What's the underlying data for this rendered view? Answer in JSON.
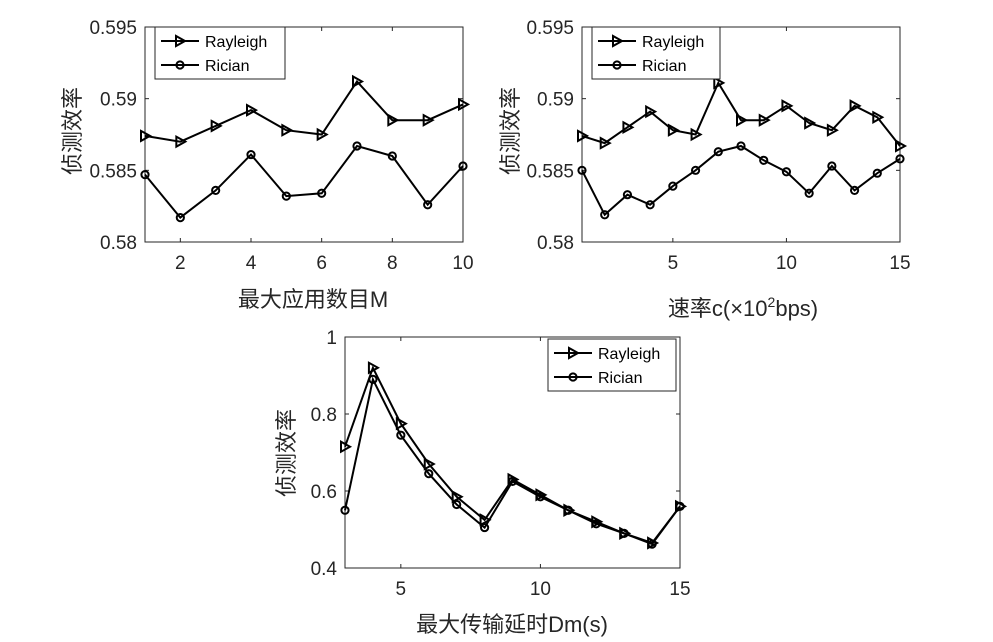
{
  "chart_data": [
    {
      "type": "line",
      "xlabel": "最大应用数目M",
      "ylabel": "侦测效率",
      "xlim": [
        1,
        10
      ],
      "ylim": [
        0.58,
        0.595
      ],
      "xticks": [
        "2",
        "4",
        "6",
        "8",
        "10"
      ],
      "yticks": [
        "0.58",
        "0.585",
        "0.59",
        "0.595"
      ],
      "legend_position": "top-left",
      "series": [
        {
          "name": "Rayleigh",
          "marker": "triangle-right",
          "x": [
            1,
            2,
            3,
            4,
            5,
            6,
            7,
            8,
            9,
            10
          ],
          "values": [
            0.5874,
            0.587,
            0.5881,
            0.5892,
            0.5878,
            0.5875,
            0.5912,
            0.5885,
            0.5885,
            0.5896
          ]
        },
        {
          "name": "Rician",
          "marker": "circle",
          "x": [
            1,
            2,
            3,
            4,
            5,
            6,
            7,
            8,
            9,
            10
          ],
          "values": [
            0.5847,
            0.5817,
            0.5836,
            0.5861,
            0.5832,
            0.5834,
            0.5867,
            0.586,
            0.5826,
            0.5853
          ]
        }
      ]
    },
    {
      "type": "line",
      "xlabel_prefix": "速率c(×10",
      "xlabel_sup": "2",
      "xlabel_suffix": "bps)",
      "ylabel": "侦测效率",
      "xlim": [
        1,
        15
      ],
      "ylim": [
        0.58,
        0.595
      ],
      "xticks": [
        "5",
        "10",
        "15"
      ],
      "yticks": [
        "0.58",
        "0.585",
        "0.59",
        "0.595"
      ],
      "legend_position": "top-left",
      "series": [
        {
          "name": "Rayleigh",
          "marker": "triangle-right",
          "x": [
            1,
            2,
            3,
            4,
            5,
            6,
            7,
            8,
            9,
            10,
            11,
            12,
            13,
            14,
            15
          ],
          "values": [
            0.5874,
            0.5869,
            0.588,
            0.5891,
            0.5878,
            0.5875,
            0.5911,
            0.5885,
            0.5885,
            0.5895,
            0.5883,
            0.5878,
            0.5895,
            0.5887,
            0.5867
          ]
        },
        {
          "name": "Rician",
          "marker": "circle",
          "x": [
            1,
            2,
            3,
            4,
            5,
            6,
            7,
            8,
            9,
            10,
            11,
            12,
            13,
            14,
            15
          ],
          "values": [
            0.585,
            0.5819,
            0.5833,
            0.5826,
            0.5839,
            0.585,
            0.5863,
            0.5867,
            0.5857,
            0.5849,
            0.5834,
            0.5853,
            0.5836,
            0.5848,
            0.5858
          ]
        }
      ]
    },
    {
      "type": "line",
      "xlabel": "最大传输延时Dm(s)",
      "ylabel": "侦测效率",
      "xlim": [
        3,
        15
      ],
      "ylim": [
        0.4,
        1.0
      ],
      "xticks": [
        "5",
        "10",
        "15"
      ],
      "yticks": [
        "0.4",
        "0.6",
        "0.8",
        "1"
      ],
      "legend_position": "top-right",
      "series": [
        {
          "name": "Rayleigh",
          "marker": "triangle-right",
          "x": [
            3,
            4,
            5,
            6,
            7,
            8,
            9,
            10,
            11,
            12,
            13,
            14,
            15
          ],
          "values": [
            0.715,
            0.92,
            0.775,
            0.67,
            0.585,
            0.525,
            0.63,
            0.59,
            0.55,
            0.52,
            0.49,
            0.465,
            0.56
          ]
        },
        {
          "name": "Rician",
          "marker": "circle",
          "x": [
            3,
            4,
            5,
            6,
            7,
            8,
            9,
            10,
            11,
            12,
            13,
            14,
            15
          ],
          "values": [
            0.55,
            0.89,
            0.745,
            0.645,
            0.565,
            0.505,
            0.625,
            0.585,
            0.55,
            0.515,
            0.49,
            0.462,
            0.56
          ]
        }
      ]
    }
  ]
}
